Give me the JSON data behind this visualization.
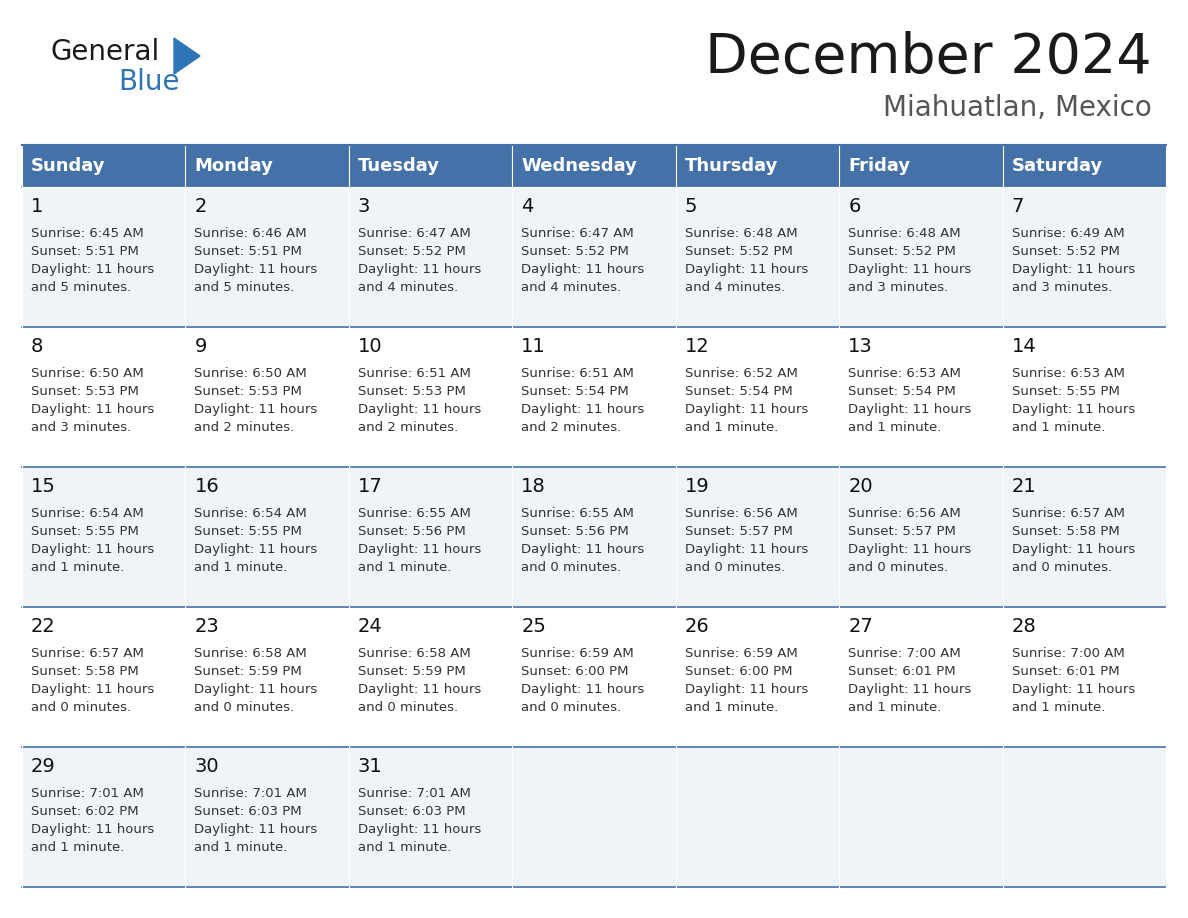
{
  "title": "December 2024",
  "subtitle": "Miahuatlan, Mexico",
  "days_of_week": [
    "Sunday",
    "Monday",
    "Tuesday",
    "Wednesday",
    "Thursday",
    "Friday",
    "Saturday"
  ],
  "header_bg": "#4472a8",
  "header_text": "#ffffff",
  "border_color": "#4472a8",
  "text_color": "#333333",
  "general_text_color": "#1a1a1a",
  "blue_color": "#2e75b6",
  "subtitle_color": "#555555",
  "calendar": [
    [
      {
        "day": 1,
        "sunrise": "6:45 AM",
        "sunset": "5:51 PM",
        "daylight_line1": "Daylight: 11 hours",
        "daylight_line2": "and 5 minutes."
      },
      {
        "day": 2,
        "sunrise": "6:46 AM",
        "sunset": "5:51 PM",
        "daylight_line1": "Daylight: 11 hours",
        "daylight_line2": "and 5 minutes."
      },
      {
        "day": 3,
        "sunrise": "6:47 AM",
        "sunset": "5:52 PM",
        "daylight_line1": "Daylight: 11 hours",
        "daylight_line2": "and 4 minutes."
      },
      {
        "day": 4,
        "sunrise": "6:47 AM",
        "sunset": "5:52 PM",
        "daylight_line1": "Daylight: 11 hours",
        "daylight_line2": "and 4 minutes."
      },
      {
        "day": 5,
        "sunrise": "6:48 AM",
        "sunset": "5:52 PM",
        "daylight_line1": "Daylight: 11 hours",
        "daylight_line2": "and 4 minutes."
      },
      {
        "day": 6,
        "sunrise": "6:48 AM",
        "sunset": "5:52 PM",
        "daylight_line1": "Daylight: 11 hours",
        "daylight_line2": "and 3 minutes."
      },
      {
        "day": 7,
        "sunrise": "6:49 AM",
        "sunset": "5:52 PM",
        "daylight_line1": "Daylight: 11 hours",
        "daylight_line2": "and 3 minutes."
      }
    ],
    [
      {
        "day": 8,
        "sunrise": "6:50 AM",
        "sunset": "5:53 PM",
        "daylight_line1": "Daylight: 11 hours",
        "daylight_line2": "and 3 minutes."
      },
      {
        "day": 9,
        "sunrise": "6:50 AM",
        "sunset": "5:53 PM",
        "daylight_line1": "Daylight: 11 hours",
        "daylight_line2": "and 2 minutes."
      },
      {
        "day": 10,
        "sunrise": "6:51 AM",
        "sunset": "5:53 PM",
        "daylight_line1": "Daylight: 11 hours",
        "daylight_line2": "and 2 minutes."
      },
      {
        "day": 11,
        "sunrise": "6:51 AM",
        "sunset": "5:54 PM",
        "daylight_line1": "Daylight: 11 hours",
        "daylight_line2": "and 2 minutes."
      },
      {
        "day": 12,
        "sunrise": "6:52 AM",
        "sunset": "5:54 PM",
        "daylight_line1": "Daylight: 11 hours",
        "daylight_line2": "and 1 minute."
      },
      {
        "day": 13,
        "sunrise": "6:53 AM",
        "sunset": "5:54 PM",
        "daylight_line1": "Daylight: 11 hours",
        "daylight_line2": "and 1 minute."
      },
      {
        "day": 14,
        "sunrise": "6:53 AM",
        "sunset": "5:55 PM",
        "daylight_line1": "Daylight: 11 hours",
        "daylight_line2": "and 1 minute."
      }
    ],
    [
      {
        "day": 15,
        "sunrise": "6:54 AM",
        "sunset": "5:55 PM",
        "daylight_line1": "Daylight: 11 hours",
        "daylight_line2": "and 1 minute."
      },
      {
        "day": 16,
        "sunrise": "6:54 AM",
        "sunset": "5:55 PM",
        "daylight_line1": "Daylight: 11 hours",
        "daylight_line2": "and 1 minute."
      },
      {
        "day": 17,
        "sunrise": "6:55 AM",
        "sunset": "5:56 PM",
        "daylight_line1": "Daylight: 11 hours",
        "daylight_line2": "and 1 minute."
      },
      {
        "day": 18,
        "sunrise": "6:55 AM",
        "sunset": "5:56 PM",
        "daylight_line1": "Daylight: 11 hours",
        "daylight_line2": "and 0 minutes."
      },
      {
        "day": 19,
        "sunrise": "6:56 AM",
        "sunset": "5:57 PM",
        "daylight_line1": "Daylight: 11 hours",
        "daylight_line2": "and 0 minutes."
      },
      {
        "day": 20,
        "sunrise": "6:56 AM",
        "sunset": "5:57 PM",
        "daylight_line1": "Daylight: 11 hours",
        "daylight_line2": "and 0 minutes."
      },
      {
        "day": 21,
        "sunrise": "6:57 AM",
        "sunset": "5:58 PM",
        "daylight_line1": "Daylight: 11 hours",
        "daylight_line2": "and 0 minutes."
      }
    ],
    [
      {
        "day": 22,
        "sunrise": "6:57 AM",
        "sunset": "5:58 PM",
        "daylight_line1": "Daylight: 11 hours",
        "daylight_line2": "and 0 minutes."
      },
      {
        "day": 23,
        "sunrise": "6:58 AM",
        "sunset": "5:59 PM",
        "daylight_line1": "Daylight: 11 hours",
        "daylight_line2": "and 0 minutes."
      },
      {
        "day": 24,
        "sunrise": "6:58 AM",
        "sunset": "5:59 PM",
        "daylight_line1": "Daylight: 11 hours",
        "daylight_line2": "and 0 minutes."
      },
      {
        "day": 25,
        "sunrise": "6:59 AM",
        "sunset": "6:00 PM",
        "daylight_line1": "Daylight: 11 hours",
        "daylight_line2": "and 0 minutes."
      },
      {
        "day": 26,
        "sunrise": "6:59 AM",
        "sunset": "6:00 PM",
        "daylight_line1": "Daylight: 11 hours",
        "daylight_line2": "and 1 minute."
      },
      {
        "day": 27,
        "sunrise": "7:00 AM",
        "sunset": "6:01 PM",
        "daylight_line1": "Daylight: 11 hours",
        "daylight_line2": "and 1 minute."
      },
      {
        "day": 28,
        "sunrise": "7:00 AM",
        "sunset": "6:01 PM",
        "daylight_line1": "Daylight: 11 hours",
        "daylight_line2": "and 1 minute."
      }
    ],
    [
      {
        "day": 29,
        "sunrise": "7:01 AM",
        "sunset": "6:02 PM",
        "daylight_line1": "Daylight: 11 hours",
        "daylight_line2": "and 1 minute."
      },
      {
        "day": 30,
        "sunrise": "7:01 AM",
        "sunset": "6:03 PM",
        "daylight_line1": "Daylight: 11 hours",
        "daylight_line2": "and 1 minute."
      },
      {
        "day": 31,
        "sunrise": "7:01 AM",
        "sunset": "6:03 PM",
        "daylight_line1": "Daylight: 11 hours",
        "daylight_line2": "and 1 minute."
      },
      null,
      null,
      null,
      null
    ]
  ]
}
